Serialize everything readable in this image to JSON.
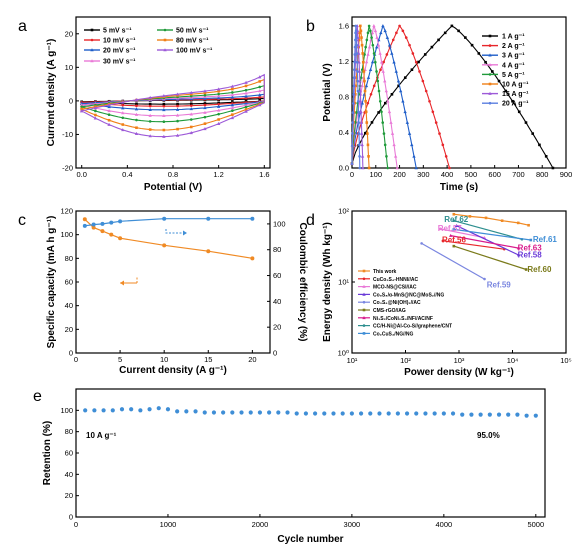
{
  "chart_data": [
    {
      "panel": "a",
      "type": "line",
      "xlabel": "Potential (V)",
      "ylabel": "Current density (A g⁻¹)",
      "xlim": [
        -0.05,
        1.65
      ],
      "ylim": [
        -20,
        25
      ],
      "xticks": [
        "0.0",
        "0.4",
        "0.8",
        "1.2",
        "1.6"
      ],
      "yticks": [
        "-20",
        "-10",
        "0",
        "10",
        "20"
      ],
      "legend_position": "top-left",
      "series": [
        {
          "name": "5 mV s⁻¹",
          "color": "#000000",
          "amp": 1.1
        },
        {
          "name": "10 mV s⁻¹",
          "color": "#e8262a",
          "amp": 1.8
        },
        {
          "name": "20 mV s⁻¹",
          "color": "#1f5ec9",
          "amp": 3.0
        },
        {
          "name": "30 mV s⁻¹",
          "color": "#e97ad7",
          "amp": 5.0
        },
        {
          "name": "50 mV s⁻¹",
          "color": "#1f9a3a",
          "amp": 7.0
        },
        {
          "name": "80 mV s⁻¹",
          "color": "#f07f17",
          "amp": 9.8
        },
        {
          "name": "100 mV s⁻¹",
          "color": "#9d5ad8",
          "amp": 12.0
        }
      ]
    },
    {
      "panel": "b",
      "type": "line",
      "xlabel": "Time (s)",
      "ylabel": "Potential (V)",
      "xlim": [
        0,
        900
      ],
      "ylim": [
        0,
        1.7
      ],
      "xticks": [
        "0",
        "100",
        "200",
        "300",
        "400",
        "500",
        "600",
        "700",
        "800",
        "900"
      ],
      "yticks": [
        "0.0",
        "0.4",
        "0.8",
        "1.2",
        "1.6"
      ],
      "legend_position": "top-right",
      "series": [
        {
          "name": "1 A g⁻¹",
          "color": "#000000",
          "t_charge": 420,
          "t_total": 845
        },
        {
          "name": "2 A g⁻¹",
          "color": "#e8262a",
          "t_charge": 200,
          "t_total": 410
        },
        {
          "name": "3 A g⁻¹",
          "color": "#1f5ec9",
          "t_charge": 130,
          "t_total": 270
        },
        {
          "name": "4 A g⁻¹",
          "color": "#e97ad7",
          "t_charge": 92,
          "t_total": 190
        },
        {
          "name": "5 A g⁻¹",
          "color": "#1f9a3a",
          "t_charge": 72,
          "t_total": 150
        },
        {
          "name": "10 A g⁻¹",
          "color": "#f07f17",
          "t_charge": 35,
          "t_total": 72
        },
        {
          "name": "15 A g⁻¹",
          "color": "#9d5ad8",
          "t_charge": 22,
          "t_total": 46
        },
        {
          "name": "20 A g⁻¹",
          "color": "#5b7fe0",
          "t_charge": 16,
          "t_total": 33
        }
      ]
    },
    {
      "panel": "c",
      "type": "line",
      "xlabel": "Current density (A g⁻¹)",
      "ylabel": "Specific capacity (mA h g⁻¹)",
      "ylabel_right": "Coulombic efficiency (%)",
      "xlim": [
        0,
        22
      ],
      "ylim": [
        0,
        120
      ],
      "ylim_right": [
        0,
        110
      ],
      "xticks": [
        "0",
        "5",
        "10",
        "15",
        "20"
      ],
      "yticks": [
        "0",
        "20",
        "40",
        "60",
        "80",
        "100",
        "120"
      ],
      "yticks_right": [
        "0",
        "20",
        "40",
        "60",
        "80",
        "100"
      ],
      "series": [
        {
          "name": "Specific capacity",
          "color": "#f08a24",
          "axis": "left",
          "x": [
            1,
            2,
            3,
            4,
            5,
            10,
            15,
            20
          ],
          "values": [
            113,
            106,
            103,
            100,
            97,
            91,
            86,
            80
          ]
        },
        {
          "name": "Coulombic efficiency",
          "color": "#3f8ed6",
          "axis": "right",
          "x": [
            1,
            2,
            3,
            4,
            5,
            10,
            15,
            20
          ],
          "values": [
            98.5,
            99.5,
            100,
            101,
            102,
            104,
            104,
            104
          ]
        }
      ]
    },
    {
      "panel": "d",
      "type": "line",
      "xlabel": "Power density (W kg⁻¹)",
      "ylabel": "Energy density (Wh kg⁻¹)",
      "xscale": "log",
      "yscale": "log",
      "xlim": [
        10,
        100000
      ],
      "ylim": [
        1,
        100
      ],
      "xticks": [
        "10¹",
        "10²",
        "10³",
        "10⁴",
        "10⁵"
      ],
      "yticks": [
        "10⁰",
        "10¹",
        "10²"
      ],
      "legend_position": "bottom-left",
      "ref_labels": [
        {
          "text": "Ref.62",
          "color": "#2e8f8f",
          "x": 530,
          "y": 76
        },
        {
          "text": "Ref.57",
          "color": "#e97ad7",
          "x": 400,
          "y": 57
        },
        {
          "text": "Ref.56",
          "color": "#e8262a",
          "x": 480,
          "y": 39
        },
        {
          "text": "Ref.61",
          "color": "#3f8ed6",
          "x": 24000,
          "y": 40
        },
        {
          "text": "Ref.63",
          "color": "#d81b8c",
          "x": 12500,
          "y": 30
        },
        {
          "text": "Ref.58",
          "color": "#6a3ad8",
          "x": 12500,
          "y": 24
        },
        {
          "text": "Ref.60",
          "color": "#7a7a1a",
          "x": 19000,
          "y": 15
        },
        {
          "text": "Ref.59",
          "color": "#7a86e0",
          "x": 3300,
          "y": 9
        }
      ],
      "series": [
        {
          "name": "This work",
          "color": "#f08a24",
          "x": [
            800,
            1600,
            3200,
            6400,
            12800,
            20000
          ],
          "values": [
            90,
            84,
            80,
            73,
            68,
            63
          ]
        },
        {
          "name": "CuCo₂S₄-HNNI//AC",
          "color": "#e8262a",
          "x": [
            500,
            7000
          ],
          "values": [
            38,
            29
          ]
        },
        {
          "name": "MCO-NS@CSI//AC",
          "color": "#e97ad7",
          "x": [
            450,
            3000
          ],
          "values": [
            56,
            42
          ]
        },
        {
          "name": "Co₉S₈/α-MnS@NC@MoS₂//NG",
          "color": "#6a3ad8",
          "x": [
            900,
            13000
          ],
          "values": [
            62,
            24
          ]
        },
        {
          "name": "Co₃S₄@Ni(OH)₂//AC",
          "color": "#7a86e0",
          "x": [
            200,
            3000
          ],
          "values": [
            35,
            11
          ]
        },
        {
          "name": "CMS-rGO//AG",
          "color": "#7a7a1a",
          "x": [
            800,
            18000
          ],
          "values": [
            32,
            15
          ]
        },
        {
          "name": "Ni₃S₂/CoNi₂S₄/NF//AC/NF",
          "color": "#d81b8c",
          "x": [
            700,
            13000
          ],
          "values": [
            45,
            30
          ]
        },
        {
          "name": "CC/H-Ni@Al-Co-S//graphene/CNT",
          "color": "#2e8f8f",
          "x": [
            800,
            15000
          ],
          "values": [
            73,
            40
          ]
        },
        {
          "name": "Co₂CuS₄/NG//NG",
          "color": "#3f8ed6",
          "x": [
            800,
            22000
          ],
          "values": [
            55,
            39
          ]
        }
      ]
    },
    {
      "panel": "e",
      "type": "scatter",
      "xlabel": "Cycle number",
      "ylabel": "Retention (%)",
      "xlim": [
        0,
        5100
      ],
      "ylim": [
        0,
        120
      ],
      "xticks": [
        "0",
        "1000",
        "2000",
        "3000",
        "4000",
        "5000"
      ],
      "yticks": [
        "0",
        "20",
        "40",
        "60",
        "80",
        "100"
      ],
      "annotations": [
        "10 A g⁻¹",
        "95.0%"
      ],
      "series": [
        {
          "name": "Retention",
          "color": "#3f8ed6",
          "x_start": 100,
          "x_step": 100,
          "count": 50,
          "values": [
            100,
            100,
            100,
            100,
            101,
            101,
            100,
            101,
            102,
            101,
            99,
            99,
            99,
            98,
            98,
            98,
            98,
            98,
            98,
            98,
            98,
            98,
            98,
            97,
            97,
            97,
            97,
            97,
            97,
            97,
            97,
            97,
            97,
            97,
            97,
            97,
            97,
            97,
            97,
            97,
            97,
            96,
            96,
            96,
            96,
            96,
            96,
            96,
            95,
            95
          ]
        }
      ]
    }
  ]
}
